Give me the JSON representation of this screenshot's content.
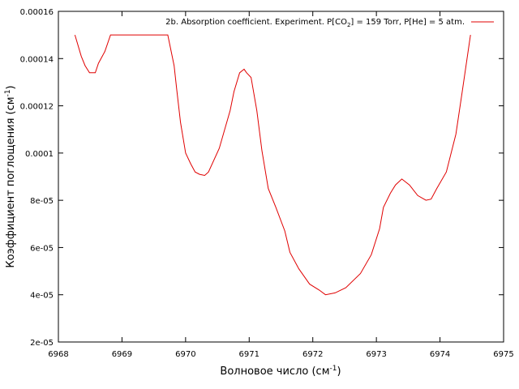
{
  "chart_data": {
    "type": "line",
    "xlabel": "Волновое число (см",
    "xlabel_sup": "-1",
    "xlabel_end": ")",
    "ylabel": "Коэффициент поглощения (см",
    "ylabel_sup": "-1",
    "ylabel_end": ")",
    "xlim": [
      6968,
      6975
    ],
    "ylim": [
      2e-05,
      0.00016
    ],
    "x_ticks": [
      "6968",
      "6969",
      "6970",
      "6971",
      "6972",
      "6973",
      "6974",
      "6975"
    ],
    "y_ticks": [
      "2e-05",
      "4e-05",
      "6e-05",
      "8e-05",
      "0.0001",
      "0.00012",
      "0.00014",
      "0.00016"
    ],
    "x_tick_values": [
      6968,
      6969,
      6970,
      6971,
      6972,
      6973,
      6974,
      6975
    ],
    "y_tick_values": [
      2e-05,
      4e-05,
      6e-05,
      8e-05,
      0.0001,
      0.00012,
      0.00014,
      0.00016
    ],
    "grid": false,
    "legend_position": "top-right",
    "legend_parts": [
      "2b. Absorption coefficient. Experiment. P[CO",
      "2",
      "] = 159 Torr, P[He] = 5 atm."
    ],
    "series": [
      {
        "name": "2b. Absorption coefficient. Experiment. P[CO2] = 159 Torr, P[He] = 5 atm.",
        "color": "#e00000",
        "x": [
          6968.26,
          6968.36,
          6968.42,
          6968.49,
          6968.58,
          6968.63,
          6968.73,
          6968.82,
          6969.0,
          6969.3,
          6969.72,
          6969.82,
          6969.86,
          6969.92,
          6970.0,
          6970.08,
          6970.15,
          6970.22,
          6970.3,
          6970.36,
          6970.53,
          6970.7,
          6970.76,
          6970.85,
          6970.92,
          6970.96,
          6971.03,
          6971.12,
          6971.2,
          6971.3,
          6971.42,
          6971.56,
          6971.64,
          6971.78,
          6971.95,
          6972.1,
          6972.2,
          6972.35,
          6972.52,
          6972.75,
          6972.92,
          6973.05,
          6973.11,
          6973.22,
          6973.3,
          6973.4,
          6973.52,
          6973.65,
          6973.78,
          6973.86,
          6973.95,
          6974.1,
          6974.25,
          6974.35,
          6974.48
        ],
        "y": [
          0.00015,
          0.000141,
          0.000137,
          0.000134,
          0.000134,
          0.000138,
          0.000143,
          0.00015,
          0.00015,
          0.00015,
          0.00015,
          0.000137,
          0.000127,
          0.000113,
          0.0001,
          9.55e-05,
          9.2e-05,
          9.1e-05,
          9.05e-05,
          9.2e-05,
          0.000102,
          0.000118,
          0.000126,
          0.000134,
          0.0001355,
          0.000134,
          0.000132,
          0.000118,
          0.000101,
          8.5e-05,
          7.7e-05,
          6.7e-05,
          5.8e-05,
          5.1e-05,
          4.45e-05,
          4.2e-05,
          4e-05,
          4.08e-05,
          4.3e-05,
          4.9e-05,
          5.7e-05,
          6.8e-05,
          7.7e-05,
          8.3e-05,
          8.65e-05,
          8.9e-05,
          8.65e-05,
          8.2e-05,
          8e-05,
          8.05e-05,
          8.5e-05,
          9.2e-05,
          0.000108,
          0.000126,
          0.00015
        ]
      }
    ]
  }
}
